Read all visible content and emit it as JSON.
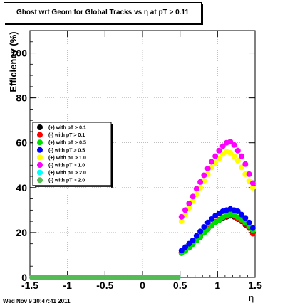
{
  "chart_data": {
    "type": "scatter",
    "title": "Ghost wrt Geom for Global Tracks vs   η at pT > 0.11",
    "xlabel": "η",
    "ylabel": "Efficiency (%)",
    "xlim": [
      -1.5,
      1.5
    ],
    "ylim": [
      0,
      110
    ],
    "xticks": [
      "-1.5",
      "-1",
      "-0.5",
      "0",
      "0.5",
      "1",
      "1.5"
    ],
    "xtick_values": [
      -1.5,
      -1,
      -0.5,
      0,
      0.5,
      1,
      1.5
    ],
    "yticks": [
      "0",
      "20",
      "40",
      "60",
      "80",
      "100"
    ],
    "ytick_values": [
      0,
      20,
      40,
      60,
      80,
      100
    ],
    "grid": true,
    "legend_position": "left-middle",
    "series": [
      {
        "name": "(+) with pT > 0.1",
        "color": "#000000",
        "x": [
          0.52,
          0.57,
          0.62,
          0.67,
          0.72,
          0.77,
          0.82,
          0.87,
          0.92,
          0.97,
          1.02,
          1.07,
          1.12,
          1.17,
          1.22,
          1.27,
          1.32,
          1.37,
          1.42,
          1.47
        ],
        "y": [
          11,
          12,
          13.5,
          15,
          16.5,
          18,
          20,
          21.5,
          23,
          24.5,
          25.5,
          26.5,
          27,
          27.5,
          27,
          26,
          25,
          23.5,
          22,
          20
        ]
      },
      {
        "name": "(-) with pT > 0.1",
        "color": "#ff0000",
        "x": [
          0.52,
          0.57,
          0.62,
          0.67,
          0.72,
          0.77,
          0.82,
          0.87,
          0.92,
          0.97,
          1.02,
          1.07,
          1.12,
          1.17,
          1.22,
          1.27,
          1.32,
          1.37,
          1.42,
          1.47
        ],
        "y": [
          11.2,
          12.2,
          13.7,
          15.2,
          16.8,
          18.3,
          20.2,
          21.8,
          23.3,
          24.8,
          25.8,
          26.8,
          27.3,
          27.8,
          27.3,
          26.2,
          25.2,
          23.8,
          22,
          19.5
        ]
      },
      {
        "name": "(+) with pT > 0.5",
        "color": "#00dd00",
        "x": [
          0.52,
          0.57,
          0.62,
          0.67,
          0.72,
          0.77,
          0.82,
          0.87,
          0.92,
          0.97,
          1.02,
          1.07,
          1.12,
          1.17,
          1.22,
          1.27,
          1.32,
          1.37,
          1.42,
          1.47
        ],
        "y": [
          10.8,
          11.8,
          13.2,
          14.8,
          16.4,
          18,
          19.8,
          21.4,
          23,
          24.6,
          25.6,
          26.8,
          27.6,
          28.2,
          27.8,
          26.8,
          25.8,
          24.4,
          22.8,
          21
        ]
      },
      {
        "name": "(-) with pT > 0.5",
        "color": "#0000ff",
        "x": [
          0.52,
          0.57,
          0.62,
          0.67,
          0.72,
          0.77,
          0.82,
          0.87,
          0.92,
          0.97,
          1.02,
          1.07,
          1.12,
          1.17,
          1.22,
          1.27,
          1.32,
          1.37,
          1.42,
          1.47
        ],
        "y": [
          12,
          13.5,
          15,
          16.5,
          18.5,
          20.5,
          22.5,
          24.5,
          26,
          27.5,
          28.5,
          29.5,
          30,
          30.5,
          30,
          29.5,
          28,
          26.5,
          24.5,
          22
        ]
      },
      {
        "name": "(+) with pT > 1.0",
        "color": "#ffff00",
        "x": [
          0.52,
          0.57,
          0.62,
          0.67,
          0.72,
          0.77,
          0.82,
          0.87,
          0.92,
          0.97,
          1.02,
          1.07,
          1.12,
          1.17,
          1.22,
          1.27,
          1.32,
          1.37,
          1.42,
          1.47
        ],
        "y": [
          25,
          28,
          31,
          34,
          37,
          40,
          43,
          46,
          49,
          51,
          53,
          55,
          56,
          55.5,
          54,
          52,
          49,
          46,
          43,
          40
        ]
      },
      {
        "name": "(-) with pT > 1.0",
        "color": "#ff00ff",
        "x": [
          0.52,
          0.57,
          0.62,
          0.67,
          0.72,
          0.77,
          0.82,
          0.87,
          0.92,
          0.97,
          1.02,
          1.07,
          1.12,
          1.17,
          1.22,
          1.27,
          1.32,
          1.37,
          1.42,
          1.47
        ],
        "y": [
          27,
          30,
          33,
          36,
          39.5,
          42.5,
          45.5,
          48.5,
          51.5,
          54,
          56.5,
          58.5,
          60,
          60.5,
          59,
          56.5,
          54,
          50.5,
          46,
          42
        ]
      },
      {
        "name": "(+) with pT > 2.0",
        "color": "#00ffff",
        "x": [
          -1.47,
          -1.42,
          -1.37,
          -1.32,
          -1.27,
          -1.22,
          -1.17,
          -1.12,
          -1.07,
          -1.02,
          -0.97,
          -0.92,
          -0.87,
          -0.82,
          -0.77,
          -0.72,
          -0.67,
          -0.62,
          -0.57,
          -0.52,
          -0.47,
          -0.42,
          -0.37,
          -0.32,
          -0.27,
          -0.22,
          -0.17,
          -0.12,
          -0.07,
          -0.02,
          0.02,
          0.07,
          0.12,
          0.17,
          0.22,
          0.27,
          0.32,
          0.37,
          0.42,
          0.47
        ],
        "y": [
          0,
          0,
          0,
          0,
          0,
          0,
          0,
          0,
          0,
          0,
          0,
          0,
          0,
          0,
          0,
          0,
          0,
          0,
          0,
          0,
          0,
          0,
          0,
          0,
          0,
          0,
          0,
          0,
          0,
          0,
          0,
          0,
          0,
          0,
          0,
          0,
          0,
          0,
          0,
          0
        ]
      },
      {
        "name": "(-) with pT > 2.0",
        "color": "#55bb55",
        "x": [
          -1.47,
          -1.42,
          -1.37,
          -1.32,
          -1.27,
          -1.22,
          -1.17,
          -1.12,
          -1.07,
          -1.02,
          -0.97,
          -0.92,
          -0.87,
          -0.82,
          -0.77,
          -0.72,
          -0.67,
          -0.62,
          -0.57,
          -0.52,
          -0.47,
          -0.42,
          -0.37,
          -0.32,
          -0.27,
          -0.22,
          -0.17,
          -0.12,
          -0.07,
          -0.02,
          0.02,
          0.07,
          0.12,
          0.17,
          0.22,
          0.27,
          0.32,
          0.37,
          0.42,
          0.47
        ],
        "y": [
          0,
          0,
          0,
          0,
          0,
          0,
          0,
          0,
          0,
          0,
          0,
          0,
          0,
          0,
          0,
          0,
          0,
          0,
          0,
          0,
          0,
          0,
          0,
          0,
          0,
          0,
          0,
          0,
          0,
          0,
          0,
          0,
          0,
          0,
          0,
          0,
          0,
          0,
          0,
          0
        ]
      }
    ]
  },
  "footer_text": "Wed Nov  9 10:47:41 2011"
}
